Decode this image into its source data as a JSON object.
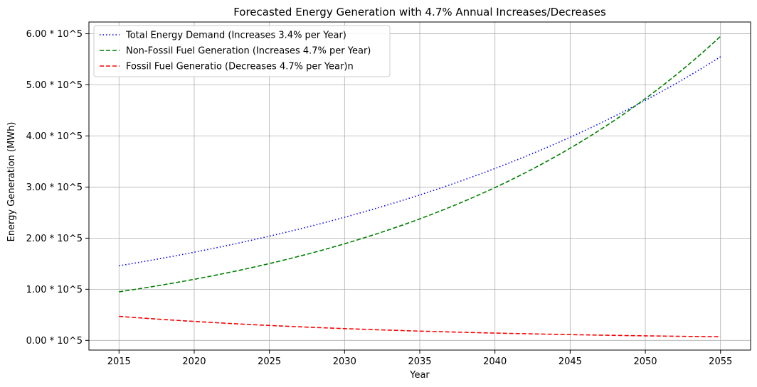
{
  "chart_data": {
    "type": "line",
    "title": "Forecasted Energy Generation with 4.7% Annual Increases/Decreases",
    "xlabel": "Year",
    "ylabel": "Energy Generation (MWh)",
    "xlim": [
      2013,
      2057
    ],
    "ylim": [
      -19000,
      623000
    ],
    "x_ticks": [
      2015,
      2020,
      2025,
      2030,
      2035,
      2040,
      2045,
      2050,
      2055
    ],
    "x_tick_labels": [
      "2015",
      "2020",
      "2025",
      "2030",
      "2035",
      "2040",
      "2045",
      "2050",
      "2055"
    ],
    "y_ticks": [
      0,
      100000,
      200000,
      300000,
      400000,
      500000,
      600000
    ],
    "y_tick_labels": [
      "0.00 * 10^5",
      "1.00 * 10^5",
      "2.00 * 10^5",
      "3.00 * 10^5",
      "4.00 * 10^5",
      "5.00 * 10^5",
      "6.00 * 10^5"
    ],
    "grid": true,
    "legend_position": "top-left",
    "x": [
      2015,
      2020,
      2025,
      2030,
      2035,
      2040,
      2045,
      2050,
      2055
    ],
    "series": [
      {
        "name": "Total Energy Demand (Increases 3.4% per Year)",
        "color": "#0000ff",
        "style": "dotted",
        "values": [
          146000,
          173000,
          204000,
          241000,
          285000,
          337000,
          398000,
          471000,
          555000
        ]
      },
      {
        "name": "Non-Fossil Fuel Generation (Increases 4.7% per Year)",
        "color": "#008000",
        "style": "dashed",
        "values": [
          95000,
          120000,
          151000,
          189000,
          238000,
          300000,
          377000,
          474000,
          595000
        ]
      },
      {
        "name": "Fossil Fuel Generatio (Decreases 4.7% per Year)n",
        "color": "#ff0000",
        "style": "dashed",
        "values": [
          47000,
          37000,
          29000,
          23000,
          18000,
          14000,
          11000,
          9000,
          7000
        ]
      }
    ]
  }
}
